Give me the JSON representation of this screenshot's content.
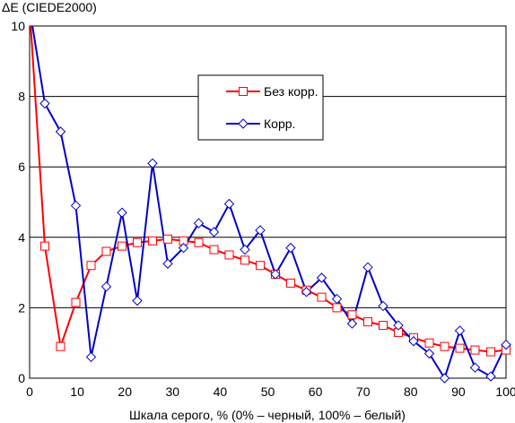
{
  "chart_data": {
    "type": "line",
    "title": "",
    "ylabel": "ΔE (CIEDE2000)",
    "xlabel": "Шкала серого, % (0% – черный, 100% – белый)",
    "xlim": [
      0,
      100
    ],
    "ylim": [
      0,
      10
    ],
    "x_ticks": [
      0,
      10,
      20,
      30,
      40,
      50,
      60,
      70,
      80,
      90,
      100
    ],
    "y_ticks": [
      0,
      2,
      4,
      6,
      8,
      10
    ],
    "grid": "horizontal",
    "legend_position": "top-right",
    "x": [
      0,
      3.2,
      6.5,
      9.7,
      12.9,
      16.1,
      19.4,
      22.6,
      25.8,
      29.0,
      32.3,
      35.5,
      38.7,
      41.9,
      45.2,
      48.4,
      51.6,
      54.8,
      58.1,
      61.3,
      64.5,
      67.7,
      71.0,
      74.2,
      77.4,
      80.6,
      83.9,
      87.1,
      90.3,
      93.5,
      96.8,
      100
    ],
    "series": [
      {
        "name": "Без корр.",
        "color": "#ff0000",
        "marker": "square",
        "values": [
          10.5,
          3.75,
          0.9,
          2.15,
          3.2,
          3.6,
          3.75,
          3.85,
          3.9,
          3.95,
          3.9,
          3.85,
          3.65,
          3.5,
          3.35,
          3.2,
          2.95,
          2.7,
          2.5,
          2.3,
          2.0,
          1.8,
          1.6,
          1.5,
          1.3,
          1.15,
          1.0,
          0.9,
          0.85,
          0.8,
          0.75,
          0.8
        ]
      },
      {
        "name": "Корр.",
        "color": "#0000cc",
        "marker": "diamond",
        "values": [
          10.5,
          7.8,
          7.0,
          4.9,
          0.6,
          2.6,
          4.7,
          2.2,
          6.1,
          3.25,
          3.7,
          4.4,
          4.15,
          4.95,
          3.65,
          4.2,
          2.95,
          3.7,
          2.45,
          2.85,
          2.25,
          1.55,
          3.15,
          2.05,
          1.5,
          1.05,
          0.7,
          0.0,
          1.35,
          0.3,
          0.05,
          0.95
        ]
      }
    ]
  }
}
